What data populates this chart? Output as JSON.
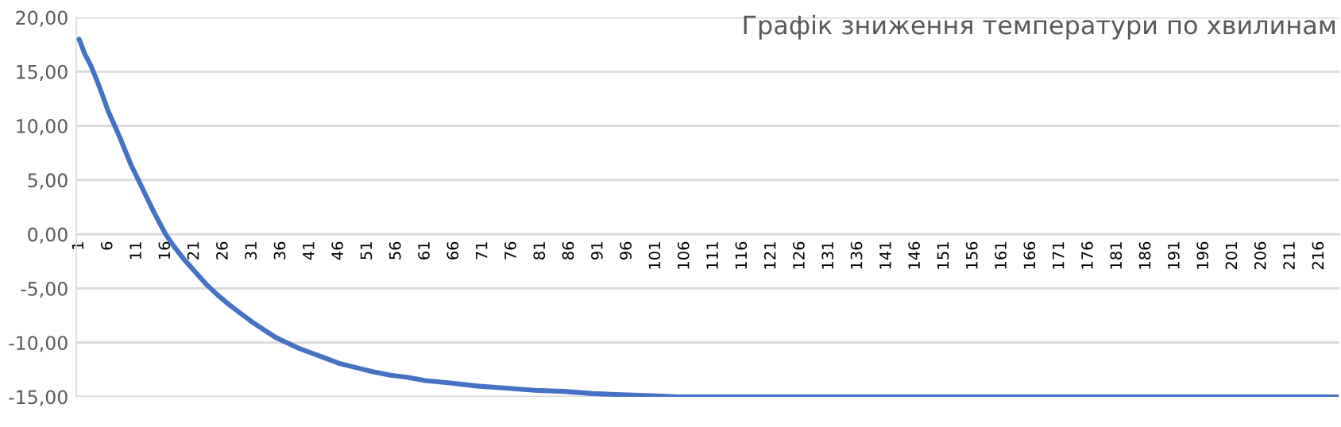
{
  "chart_data": {
    "type": "line",
    "title": "Графік зниження температури по хвилинам",
    "x": [
      1,
      2,
      3,
      4,
      5,
      6,
      7,
      8,
      9,
      10,
      11,
      12,
      13,
      14,
      15,
      16,
      17,
      18,
      19,
      20,
      21,
      23,
      25,
      27,
      29,
      31,
      33,
      35,
      37,
      39,
      41,
      43,
      46,
      49,
      52,
      55,
      58,
      61,
      65,
      70,
      75,
      80,
      85,
      90,
      95,
      100,
      105,
      110,
      120,
      130,
      140,
      150,
      160,
      170,
      180,
      190,
      200,
      210,
      219
    ],
    "series": [
      {
        "color": "#4472c4",
        "values": [
          18.0,
          16.6,
          15.6,
          14.3,
          12.9,
          11.4,
          10.2,
          9.0,
          7.7,
          6.4,
          5.3,
          4.2,
          3.1,
          2.0,
          1.0,
          0.0,
          -0.8,
          -1.5,
          -2.2,
          -2.8,
          -3.4,
          -4.6,
          -5.6,
          -6.5,
          -7.3,
          -8.1,
          -8.8,
          -9.5,
          -10.0,
          -10.5,
          -10.9,
          -11.3,
          -11.9,
          -12.3,
          -12.7,
          -13.0,
          -13.2,
          -13.5,
          -13.7,
          -14.0,
          -14.2,
          -14.4,
          -14.5,
          -14.7,
          -14.8,
          -14.9,
          -15.0,
          -15.0,
          -15.0,
          -15.0,
          -15.0,
          -15.0,
          -15.0,
          -15.0,
          -15.0,
          -15.0,
          -15.0,
          -15.0,
          -15.0
        ]
      }
    ],
    "xlim": [
      0.5,
      219.5
    ],
    "xticks": [
      1,
      6,
      11,
      16,
      21,
      26,
      31,
      36,
      41,
      46,
      51,
      56,
      61,
      66,
      71,
      76,
      81,
      86,
      91,
      96,
      101,
      106,
      111,
      116,
      121,
      126,
      131,
      136,
      141,
      146,
      151,
      156,
      161,
      166,
      171,
      176,
      181,
      186,
      191,
      196,
      201,
      206,
      211,
      216
    ],
    "ylim": [
      -15,
      20
    ],
    "yticks": [
      {
        "value": 20,
        "label": "20,00"
      },
      {
        "value": 15,
        "label": "15,00"
      },
      {
        "value": 10,
        "label": "10,00"
      },
      {
        "value": 5,
        "label": "5,00"
      },
      {
        "value": 0,
        "label": "0,00"
      },
      {
        "value": -5,
        "label": "-5,00"
      },
      {
        "value": -10,
        "label": "-10,00"
      },
      {
        "value": -15,
        "label": "-15,00"
      }
    ],
    "grid": "y",
    "legend": false,
    "marker": "none",
    "line_style": "solid"
  }
}
